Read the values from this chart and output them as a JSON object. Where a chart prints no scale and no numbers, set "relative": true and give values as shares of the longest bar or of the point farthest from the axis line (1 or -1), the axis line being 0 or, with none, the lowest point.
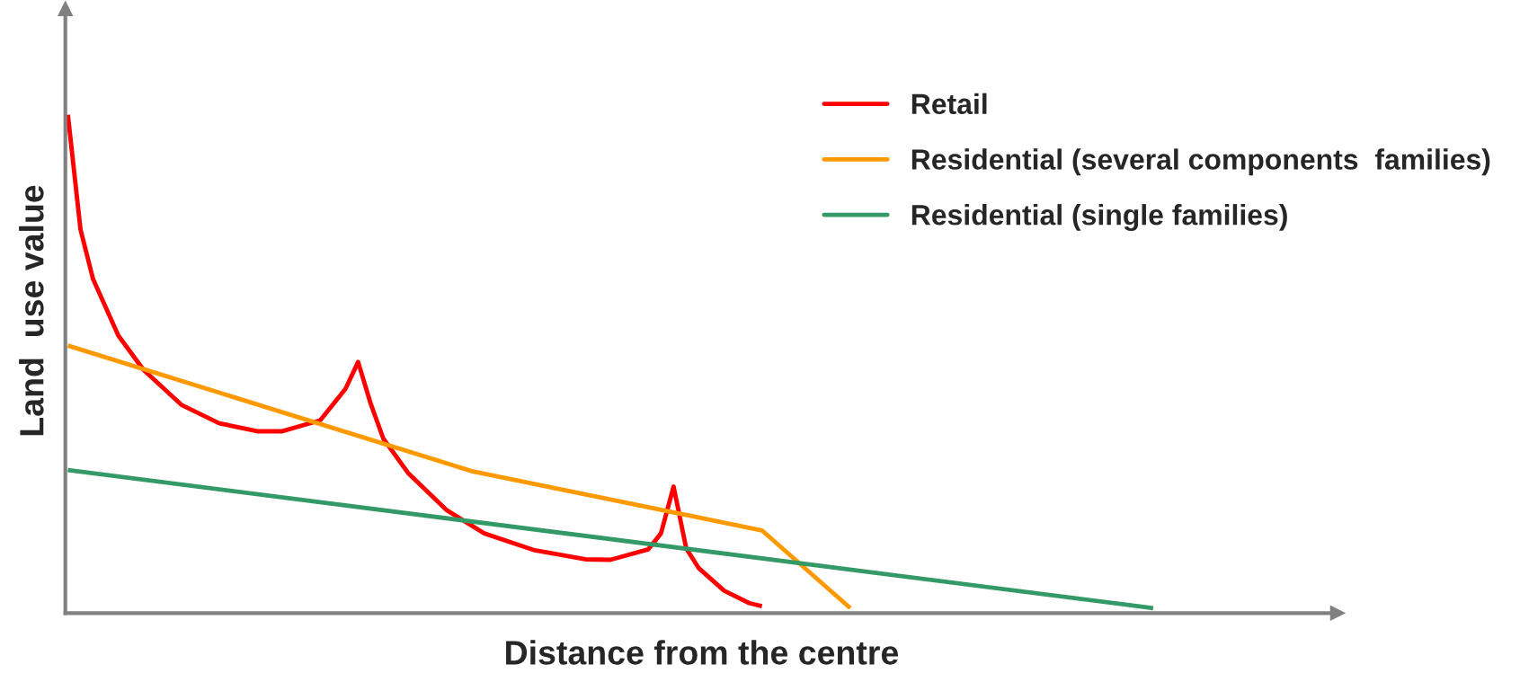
{
  "chart_data": {
    "type": "line",
    "relative": true,
    "xlabel": "Distance from the centre",
    "ylabel": "Land  use value",
    "legend": "top right",
    "marker": "none",
    "line_style": "solid",
    "categories": [
      null,
      null,
      null,
      null,
      null,
      null,
      null,
      null,
      null,
      null,
      null,
      null,
      null,
      null,
      null,
      null,
      null,
      null,
      null,
      null,
      null,
      null,
      null,
      null,
      null,
      null,
      null,
      null,
      null,
      null,
      null,
      null,
      null,
      null,
      null,
      null,
      null,
      null,
      null,
      null,
      null,
      null,
      null,
      null,
      null,
      null,
      null,
      null,
      null,
      null,
      null,
      null,
      null,
      null,
      null,
      null,
      null,
      null,
      null,
      null,
      null,
      null,
      null,
      null,
      null,
      null,
      null,
      null,
      null,
      null,
      null,
      null,
      null,
      null,
      null,
      null,
      null,
      null,
      null,
      null,
      null,
      null,
      null,
      null,
      null,
      null,
      null
    ],
    "series": [
      {
        "name": "Retail",
        "color": "#ff0000",
        "values": [
          1.0,
          0.77,
          0.67,
          null,
          0.557,
          null,
          0.488,
          null,
          null,
          0.418,
          null,
          null,
          0.381,
          null,
          null,
          0.365,
          null,
          0.365,
          null,
          null,
          0.387,
          null,
          0.45,
          0.504,
          0.42,
          0.35,
          null,
          0.28,
          null,
          null,
          0.207,
          null,
          null,
          0.16,
          null,
          null,
          null,
          0.126,
          null,
          null,
          null,
          0.108,
          null,
          0.107,
          null,
          null,
          0.128,
          0.16,
          0.254,
          0.13,
          0.09,
          null,
          0.045,
          null,
          0.02,
          0.014,
          null,
          null,
          null,
          null,
          null,
          null,
          null,
          null,
          null,
          null,
          null,
          null,
          null,
          null,
          null,
          null,
          null,
          null,
          null,
          null,
          null,
          null,
          null,
          null,
          null,
          null,
          null,
          null,
          null,
          null,
          null
        ]
      },
      {
        "name": "Residential (several components  families)",
        "color": "#ff9900",
        "values": [
          0.537,
          null,
          null,
          null,
          null,
          null,
          null,
          null,
          null,
          null,
          null,
          null,
          null,
          null,
          null,
          null,
          null,
          null,
          null,
          null,
          null,
          null,
          null,
          null,
          null,
          null,
          null,
          null,
          null,
          null,
          null,
          null,
          0.285,
          null,
          null,
          null,
          null,
          null,
          null,
          null,
          null,
          null,
          null,
          null,
          null,
          null,
          null,
          null,
          null,
          null,
          null,
          null,
          null,
          null,
          null,
          0.166,
          null,
          null,
          null,
          null,
          null,
          null,
          0.01,
          null,
          null,
          null,
          null,
          null,
          null,
          null,
          null,
          null,
          null,
          null,
          null,
          null,
          null,
          null,
          null,
          null,
          null,
          null,
          null,
          null,
          null,
          null,
          null
        ]
      },
      {
        "name": "Residential (single families)",
        "color": "#339966",
        "values": [
          0.287,
          null,
          null,
          null,
          null,
          null,
          null,
          null,
          null,
          null,
          null,
          null,
          null,
          null,
          null,
          null,
          null,
          null,
          null,
          null,
          null,
          null,
          null,
          null,
          null,
          null,
          null,
          null,
          null,
          null,
          null,
          null,
          null,
          null,
          null,
          null,
          null,
          null,
          null,
          null,
          null,
          null,
          null,
          null,
          null,
          null,
          null,
          null,
          null,
          null,
          null,
          null,
          null,
          null,
          null,
          null,
          null,
          null,
          null,
          null,
          null,
          null,
          null,
          null,
          null,
          null,
          null,
          null,
          null,
          null,
          null,
          null,
          null,
          null,
          null,
          null,
          null,
          null,
          null,
          null,
          null,
          null,
          null,
          null,
          null,
          null,
          0.01
        ]
      }
    ]
  }
}
